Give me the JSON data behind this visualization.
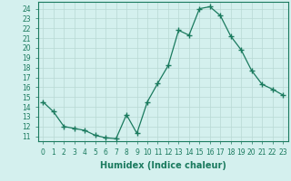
{
  "xlabel": "Humidex (Indice chaleur)",
  "x_values": [
    0,
    1,
    2,
    3,
    4,
    5,
    6,
    7,
    8,
    9,
    10,
    11,
    12,
    13,
    14,
    15,
    16,
    17,
    18,
    19,
    20,
    21,
    22,
    23
  ],
  "y_values": [
    14.5,
    13.5,
    12.0,
    11.8,
    11.6,
    11.1,
    10.85,
    10.75,
    13.2,
    11.3,
    14.5,
    16.4,
    18.2,
    21.8,
    21.3,
    24.0,
    24.2,
    23.3,
    21.2,
    19.8,
    17.7,
    16.3,
    15.8,
    15.2
  ],
  "line_color": "#1a7a5e",
  "marker": "+",
  "marker_size": 4,
  "marker_linewidth": 1.0,
  "background_color": "#d4f0ee",
  "grid_color": "#b8d8d4",
  "ylim": [
    10.5,
    24.7
  ],
  "xlim": [
    -0.5,
    23.5
  ],
  "yticks": [
    11,
    12,
    13,
    14,
    15,
    16,
    17,
    18,
    19,
    20,
    21,
    22,
    23,
    24
  ],
  "xticks": [
    0,
    1,
    2,
    3,
    4,
    5,
    6,
    7,
    8,
    9,
    10,
    11,
    12,
    13,
    14,
    15,
    16,
    17,
    18,
    19,
    20,
    21,
    22,
    23
  ],
  "tick_fontsize": 5.5,
  "label_fontsize": 7
}
